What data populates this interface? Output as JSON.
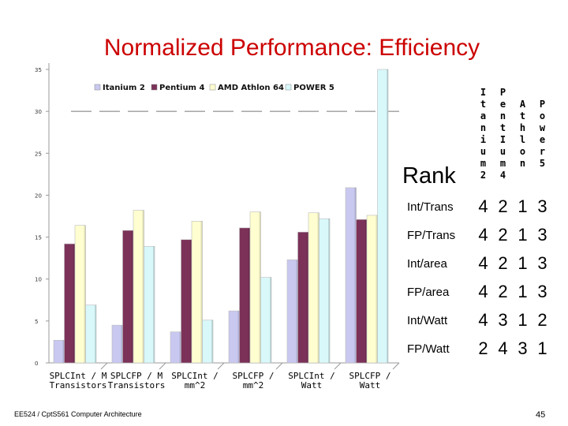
{
  "slide": {
    "title": "Normalized Performance: Efficiency",
    "footer": "EE524 / CptS561 Computer Architecture",
    "page_number": "45"
  },
  "colors": {
    "title": "#cc0000",
    "itanium": "#c8c8f0",
    "pentium": "#7b3158",
    "athlon": "#fefed0",
    "power": "#d8f8fa"
  },
  "chart_data": {
    "type": "bar",
    "title": "",
    "xlabel": "",
    "ylabel": "",
    "ylim": [
      0,
      35
    ],
    "yticks": [
      0,
      5,
      10,
      15,
      20,
      25,
      30,
      35
    ],
    "grid": false,
    "legend_position": "top",
    "categories": [
      [
        "SPLCInt / M",
        "Transistors"
      ],
      [
        "SPLCFP / M",
        "Transistors"
      ],
      [
        "SPLCInt /",
        "mm^2"
      ],
      [
        "SPLCFP /",
        "mm^2"
      ],
      [
        "SPLCInt /",
        "Watt"
      ],
      [
        "SPLCFP /",
        "Watt"
      ]
    ],
    "series": [
      {
        "name": "Itanium 2",
        "color": "#c8c8f0",
        "values": [
          2.7,
          4.5,
          3.7,
          6.2,
          12.3,
          20.9
        ]
      },
      {
        "name": "Pentium 4",
        "color": "#7b3158",
        "values": [
          14.2,
          15.8,
          14.7,
          16.1,
          15.6,
          17.1
        ]
      },
      {
        "name": "AMD Athlon 64",
        "color": "#fefed0",
        "values": [
          16.4,
          18.2,
          16.9,
          18.0,
          17.9,
          17.6
        ]
      },
      {
        "name": "POWER 5",
        "color": "#d8f8fa",
        "values": [
          6.9,
          13.9,
          5.1,
          10.2,
          17.2,
          35.0
        ]
      }
    ]
  },
  "rank_table": {
    "header": "Rank",
    "processors": [
      {
        "name": "Itanium 2",
        "letters": [
          "I",
          "t",
          "a",
          "n",
          "i",
          "u",
          "m",
          "2"
        ]
      },
      {
        "name": "Pentium 4",
        "letters": [
          "P",
          "e",
          "n",
          "t",
          "I",
          "u",
          "m",
          "4"
        ]
      },
      {
        "name": "Athlon",
        "letters": [
          "A",
          "t",
          "h",
          "l",
          "o",
          "n"
        ]
      },
      {
        "name": "Power 5",
        "letters": [
          "P",
          "o",
          "w",
          "e",
          "r",
          "5"
        ]
      }
    ],
    "rows": [
      {
        "metric": "Int/Trans",
        "ranks": [
          "4",
          "2",
          "1",
          "3"
        ]
      },
      {
        "metric": "FP/Trans",
        "ranks": [
          "4",
          "2",
          "1",
          "3"
        ]
      },
      {
        "metric": "Int/area",
        "ranks": [
          "4",
          "2",
          "1",
          "3"
        ]
      },
      {
        "metric": "FP/area",
        "ranks": [
          "4",
          "2",
          "1",
          "3"
        ]
      },
      {
        "metric": "Int/Watt",
        "ranks": [
          "4",
          "3",
          "1",
          "2"
        ]
      },
      {
        "metric": "FP/Watt",
        "ranks": [
          "2",
          "4",
          "3",
          "1"
        ]
      }
    ]
  }
}
